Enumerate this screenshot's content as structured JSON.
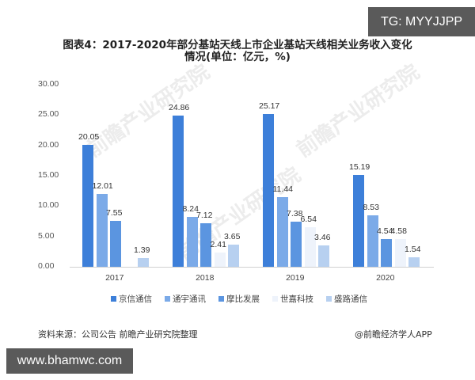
{
  "badges": {
    "top_right": "TG: MYYJJPP",
    "bottom_left": "www.bhamwc.com"
  },
  "watermark": "前瞻产业研究院",
  "footer": {
    "source": "资料来源：公司公告 前瞻产业研究院整理",
    "credit": "@前瞻经济学人APP"
  },
  "chart_data": {
    "type": "bar",
    "title": "图表4：2017-2020年部分基站天线上市企业基站天线相关业务收入变化情况(单位：亿元，%)",
    "title_line1": "图表4：2017-2020年部分基站天线上市企业基站天线相关业务收入变化",
    "title_line2": "情况(单位：亿元，%)",
    "xlabel": "",
    "ylabel": "",
    "ylim": [
      0,
      30
    ],
    "yticks": [
      "30.00",
      "25.00",
      "20.00",
      "15.00",
      "10.00",
      "5.00",
      "0.00"
    ],
    "grid": false,
    "legend_position": "bottom",
    "categories": [
      "2017",
      "2018",
      "2019",
      "2020"
    ],
    "series": [
      {
        "name": "京信通信",
        "color": "#3d7fd9",
        "values": [
          20.05,
          24.86,
          25.17,
          15.19
        ],
        "labels": [
          "20.05",
          "24.86",
          "25.17",
          "15.19"
        ]
      },
      {
        "name": "通宇通讯",
        "color": "#7baae8",
        "values": [
          12.01,
          8.24,
          11.44,
          8.53
        ],
        "labels": [
          "12.01",
          "8.24",
          "11.44",
          "8.53"
        ]
      },
      {
        "name": "摩比发展",
        "color": "#5b95e0",
        "values": [
          7.55,
          7.12,
          7.38,
          4.54
        ],
        "labels": [
          "7.55",
          "7.12",
          "7.38",
          "4.54"
        ]
      },
      {
        "name": "世嘉科技",
        "color": "#eef3fb",
        "values": [
          null,
          2.41,
          6.54,
          4.58
        ],
        "labels": [
          "",
          "2.41",
          "6.54",
          "4.58"
        ]
      },
      {
        "name": "盛路通信",
        "color": "#b7d0f0",
        "values": [
          1.39,
          3.65,
          3.46,
          1.54
        ],
        "labels": [
          "1.39",
          "3.65",
          "3.46",
          "1.54"
        ]
      }
    ]
  }
}
